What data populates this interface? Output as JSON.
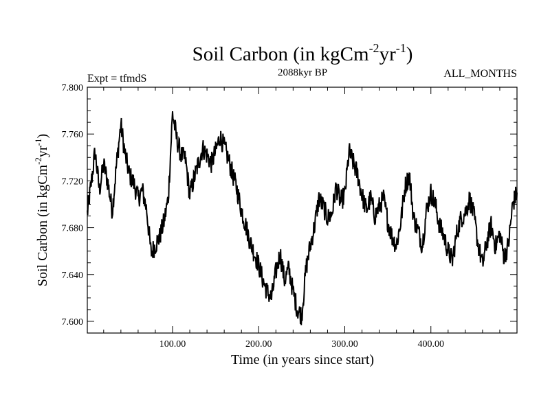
{
  "chart_data": {
    "type": "line",
    "title": "Soil Carbon (in kgCm",
    "title_sup1": "-2",
    "title_mid": "yr",
    "title_sup2": "-1",
    "title_end": ")",
    "subtitle": "2088kyr BP",
    "left_label": "Expt = tfmdS",
    "right_label": "ALL_MONTHS",
    "xlabel": "Time (in years since start)",
    "ylabel": "Soil Carbon (in kgCm",
    "ylabel_sup1": "-2",
    "ylabel_mid": "yr",
    "ylabel_sup2": "-1",
    "ylabel_end": ")",
    "xlim": [
      1,
      500
    ],
    "ylim": [
      7.59,
      7.8
    ],
    "x_ticks": [
      100,
      200,
      300,
      400
    ],
    "x_tick_labels": [
      "100.00",
      "200.00",
      "300.00",
      "400.00"
    ],
    "y_ticks": [
      7.6,
      7.64,
      7.68,
      7.72,
      7.76,
      7.8
    ],
    "y_tick_labels": [
      "7.600",
      "7.640",
      "7.680",
      "7.720",
      "7.760",
      "7.800"
    ],
    "series": [
      {
        "name": "Soil Carbon",
        "x": [
          1,
          5,
          10,
          15,
          20,
          25,
          30,
          35,
          40,
          45,
          50,
          55,
          60,
          65,
          70,
          75,
          80,
          85,
          90,
          95,
          100,
          105,
          110,
          115,
          120,
          125,
          130,
          135,
          140,
          145,
          150,
          155,
          160,
          165,
          170,
          175,
          180,
          185,
          190,
          195,
          200,
          205,
          210,
          215,
          220,
          225,
          230,
          235,
          240,
          245,
          250,
          255,
          260,
          265,
          270,
          275,
          280,
          285,
          290,
          295,
          300,
          305,
          310,
          315,
          320,
          325,
          330,
          335,
          340,
          345,
          350,
          355,
          360,
          365,
          370,
          375,
          380,
          385,
          390,
          395,
          400,
          405,
          410,
          415,
          420,
          425,
          430,
          435,
          440,
          445,
          450,
          455,
          460,
          465,
          470,
          475,
          480,
          485,
          490,
          495,
          500
        ],
        "values": [
          7.692,
          7.715,
          7.745,
          7.712,
          7.734,
          7.718,
          7.694,
          7.735,
          7.768,
          7.742,
          7.725,
          7.718,
          7.705,
          7.712,
          7.695,
          7.658,
          7.665,
          7.672,
          7.685,
          7.705,
          7.778,
          7.755,
          7.742,
          7.738,
          7.708,
          7.722,
          7.735,
          7.748,
          7.742,
          7.735,
          7.745,
          7.758,
          7.749,
          7.738,
          7.725,
          7.712,
          7.695,
          7.682,
          7.668,
          7.658,
          7.648,
          7.635,
          7.625,
          7.62,
          7.642,
          7.658,
          7.635,
          7.645,
          7.625,
          7.61,
          7.605,
          7.645,
          7.665,
          7.682,
          7.705,
          7.698,
          7.688,
          7.692,
          7.715,
          7.702,
          7.708,
          7.745,
          7.735,
          7.725,
          7.708,
          7.695,
          7.705,
          7.69,
          7.698,
          7.705,
          7.685,
          7.672,
          7.665,
          7.685,
          7.715,
          7.725,
          7.688,
          7.678,
          7.665,
          7.695,
          7.71,
          7.7,
          7.682,
          7.673,
          7.66,
          7.652,
          7.675,
          7.688,
          7.693,
          7.705,
          7.69,
          7.665,
          7.648,
          7.668,
          7.682,
          7.664,
          7.675,
          7.655,
          7.665,
          7.7,
          7.71
        ]
      }
    ]
  }
}
